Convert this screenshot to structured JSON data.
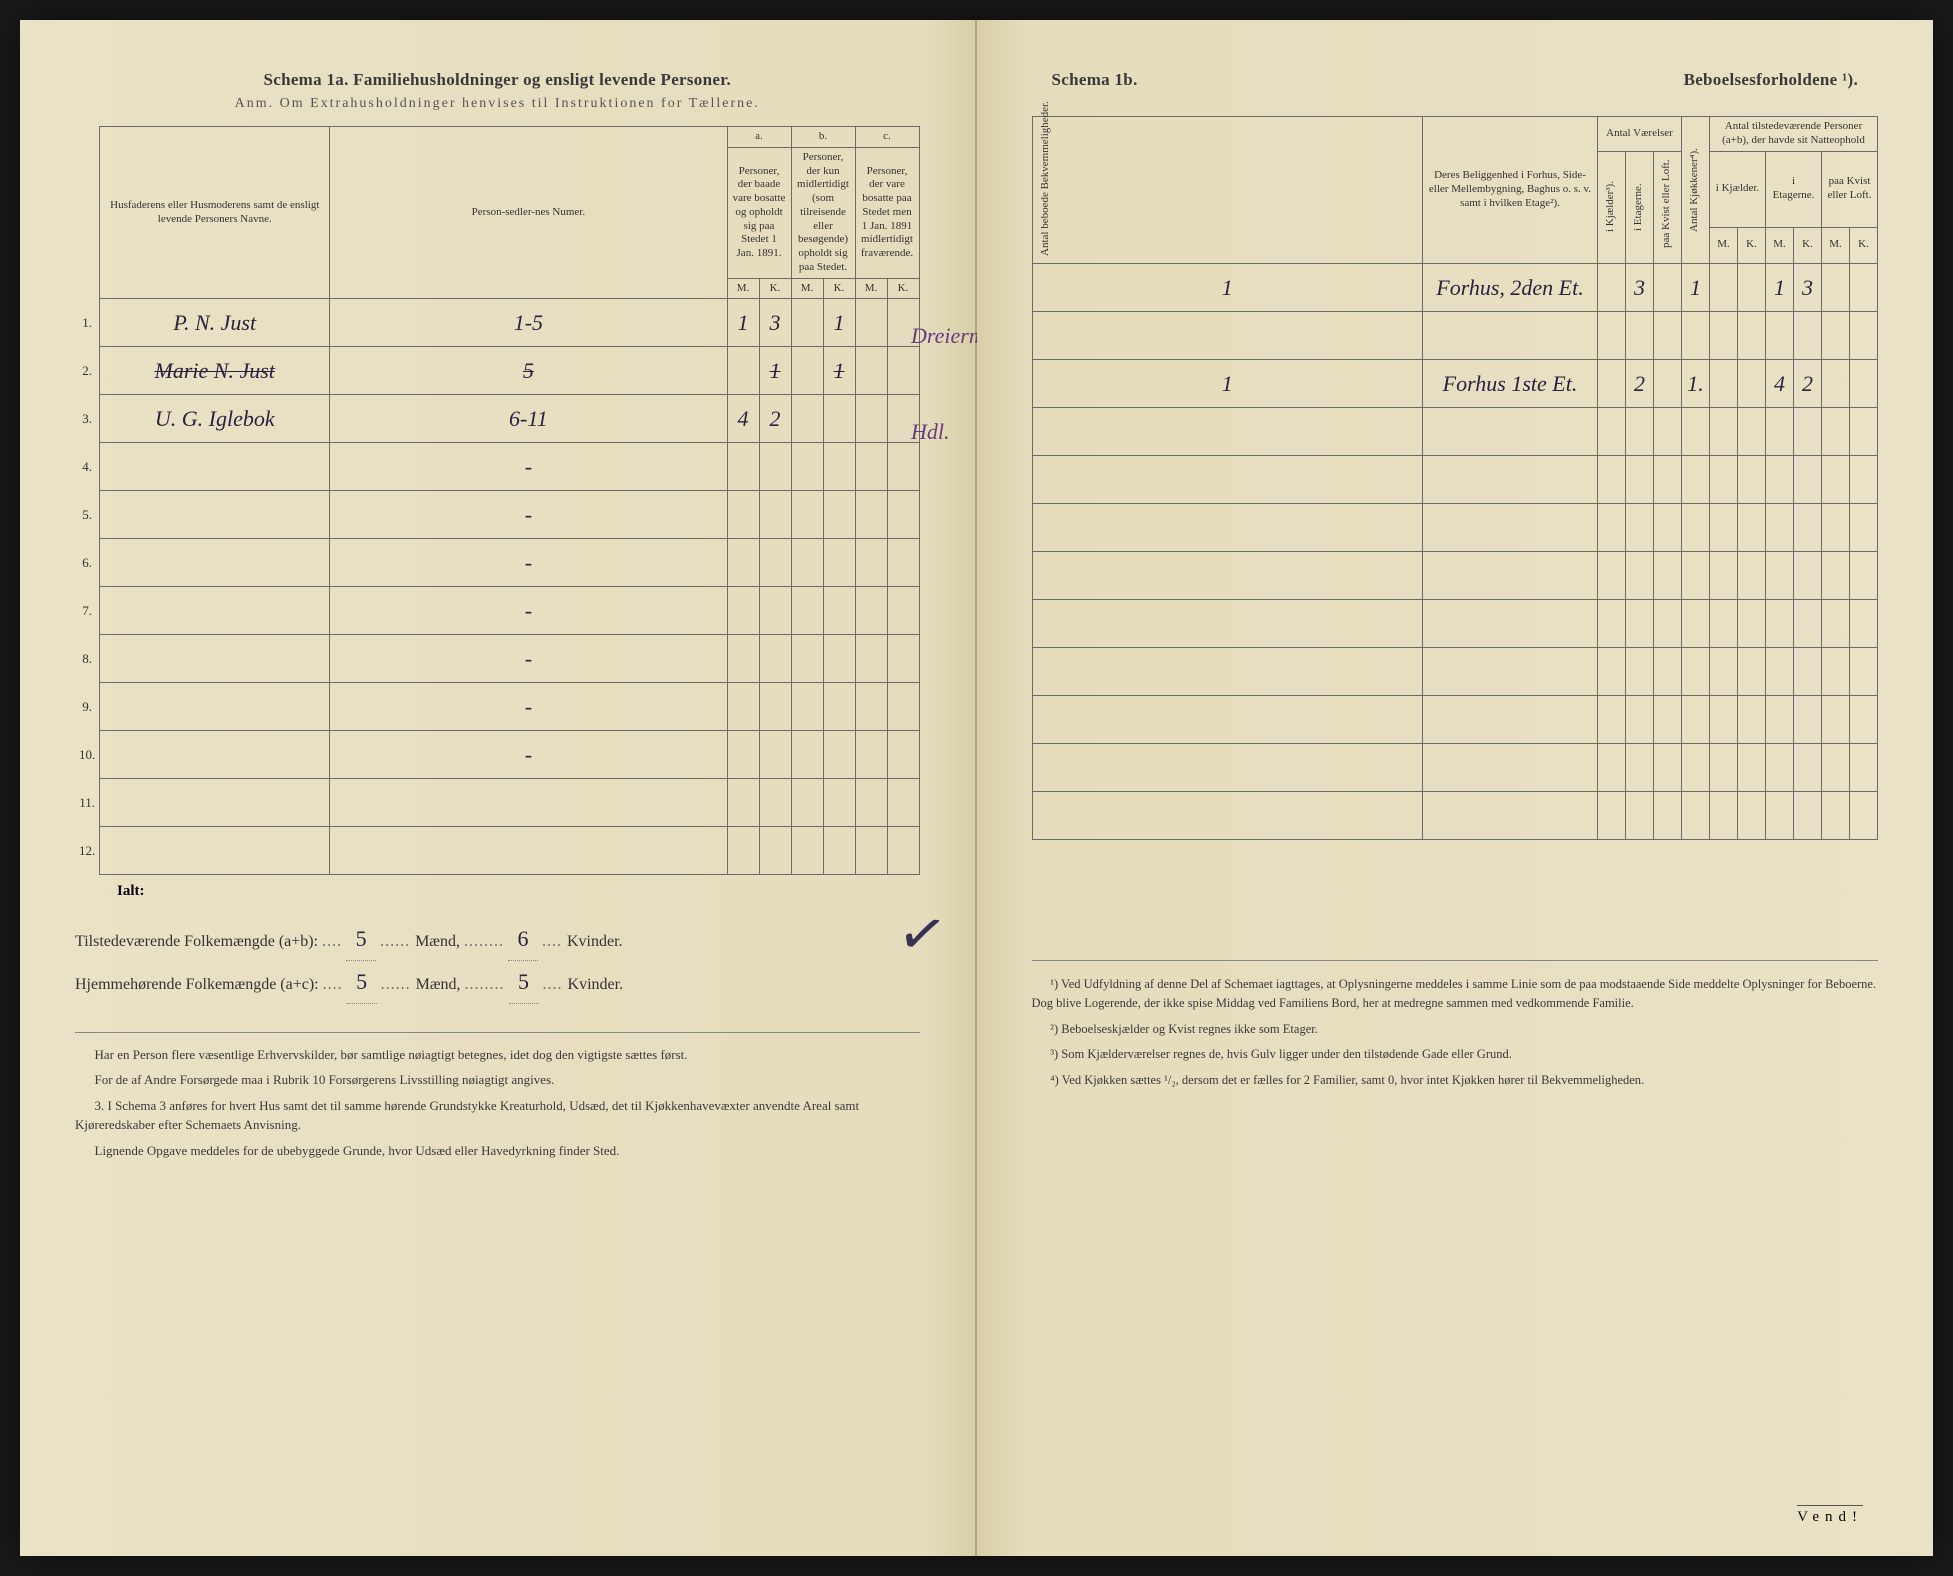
{
  "left": {
    "title": "Schema 1a.  Familiehusholdninger og ensligt levende Personer.",
    "subtitle": "Anm. Om Extrahusholdninger henvises til Instruktionen for Tællerne.",
    "headers": {
      "names": "Husfaderens eller Husmoderens samt de ensligt levende Personers Navne.",
      "person_num": "Person-sedler-nes Numer.",
      "a_label": "a.",
      "a_text": "Personer, der baade vare bosatte og opholdt sig paa Stedet 1 Jan. 1891.",
      "b_label": "b.",
      "b_text": "Personer, der kun midlertidigt (som tilreisende eller besøgende) opholdt sig paa Stedet.",
      "c_label": "c.",
      "c_text": "Personer, der vare bosatte paa Stedet men 1 Jan. 1891 midlertidigt fraværende.",
      "m": "M.",
      "k": "K."
    },
    "rows": [
      {
        "n": "1.",
        "name": "P. N. Just",
        "pn": "1-5",
        "aM": "1",
        "aK": "3",
        "bM": "",
        "bK": "1",
        "cM": "",
        "cK": "",
        "strike": false,
        "extra": "Dreierm."
      },
      {
        "n": "2.",
        "name": "Marie N. Just",
        "pn": "5",
        "aM": "",
        "aK": "1",
        "bM": "",
        "bK": "1",
        "cM": "",
        "cK": "",
        "strike": true,
        "extra": ""
      },
      {
        "n": "3.",
        "name": "U. G. Iglebok",
        "pn": "6-11",
        "aM": "4",
        "aK": "2",
        "bM": "",
        "bK": "",
        "cM": "",
        "cK": "",
        "strike": false,
        "extra": "Hdl."
      },
      {
        "n": "4.",
        "name": "",
        "pn": "-",
        "aM": "",
        "aK": "",
        "bM": "",
        "bK": "",
        "cM": "",
        "cK": "",
        "strike": false,
        "extra": ""
      },
      {
        "n": "5.",
        "name": "",
        "pn": "-",
        "aM": "",
        "aK": "",
        "bM": "",
        "bK": "",
        "cM": "",
        "cK": "",
        "strike": false,
        "extra": ""
      },
      {
        "n": "6.",
        "name": "",
        "pn": "-",
        "aM": "",
        "aK": "",
        "bM": "",
        "bK": "",
        "cM": "",
        "cK": "",
        "strike": false,
        "extra": ""
      },
      {
        "n": "7.",
        "name": "",
        "pn": "-",
        "aM": "",
        "aK": "",
        "bM": "",
        "bK": "",
        "cM": "",
        "cK": "",
        "strike": false,
        "extra": ""
      },
      {
        "n": "8.",
        "name": "",
        "pn": "-",
        "aM": "",
        "aK": "",
        "bM": "",
        "bK": "",
        "cM": "",
        "cK": "",
        "strike": false,
        "extra": ""
      },
      {
        "n": "9.",
        "name": "",
        "pn": "-",
        "aM": "",
        "aK": "",
        "bM": "",
        "bK": "",
        "cM": "",
        "cK": "",
        "strike": false,
        "extra": ""
      },
      {
        "n": "10.",
        "name": "",
        "pn": "-",
        "aM": "",
        "aK": "",
        "bM": "",
        "bK": "",
        "cM": "",
        "cK": "",
        "strike": false,
        "extra": ""
      },
      {
        "n": "11.",
        "name": "",
        "pn": "",
        "aM": "",
        "aK": "",
        "bM": "",
        "bK": "",
        "cM": "",
        "cK": "",
        "strike": false,
        "extra": ""
      },
      {
        "n": "12.",
        "name": "",
        "pn": "",
        "aM": "",
        "aK": "",
        "bM": "",
        "bK": "",
        "cM": "",
        "cK": "",
        "strike": false,
        "extra": ""
      }
    ],
    "ialt": "Ialt:",
    "total1_label": "Tilstedeværende Folkemængde (a+b):",
    "total1_m": "5",
    "total1_mw": "Mænd,",
    "total1_k": "6",
    "total1_kw": "Kvinder.",
    "total2_label": "Hjemmehørende Folkemængde (a+c):",
    "total2_m": "5",
    "total2_mw": "Mænd,",
    "total2_k": "5",
    "total2_kw": "Kvinder.",
    "foot1": "Har en Person flere væsentlige Erhvervskilder, bør samtlige nøiagtigt betegnes, idet dog den vigtigste sættes først.",
    "foot2": "For de af Andre Forsørgede maa i Rubrik 10 Forsørgerens Livsstilling nøiagtigt angives.",
    "foot3": "3. I Schema 3 anføres for hvert Hus samt det til samme hørende Grundstykke Kreaturhold, Udsæd, det til Kjøkkenhavevæxter anvendte Areal samt Kjøreredskaber efter Schemaets Anvisning.",
    "foot4": "Lignende Opgave meddeles for de ubebyggede Grunde, hvor Udsæd eller Havedyrkning finder Sted."
  },
  "right": {
    "title_a": "Schema 1b.",
    "title_b": "Beboelsesforholdene ¹).",
    "headers": {
      "bekv": "Antal beboede Bekvemmeligheder.",
      "loc": "Deres Beliggenhed i Forhus, Side- eller Mellembygning, Baghus o. s. v. samt i hvilken Etage²).",
      "rooms": "Antal Værelser",
      "kj": "i Kjælder³).",
      "et": "i Etagerne.",
      "kv": "paa Kvist eller Loft.",
      "kitchen": "Antal Kjøkkener⁴).",
      "persons": "Antal tilstedeværende Personer (a+b), der havde sit Natteophold",
      "p_kj": "i Kjælder.",
      "p_et": "i Etagerne.",
      "p_kv": "paa Kvist eller Loft.",
      "m": "M.",
      "k": "K."
    },
    "rows": [
      {
        "bekv": "1",
        "loc": "Forhus, 2den Et.",
        "rk": "",
        "re": "3",
        "rkv": "",
        "kit": "1",
        "kjM": "",
        "kjK": "",
        "etM": "1",
        "etK": "3",
        "kvM": "",
        "kvK": ""
      },
      {
        "bekv": "",
        "loc": "",
        "rk": "",
        "re": "",
        "rkv": "",
        "kit": "",
        "kjM": "",
        "kjK": "",
        "etM": "",
        "etK": "",
        "kvM": "",
        "kvK": ""
      },
      {
        "bekv": "1",
        "loc": "Forhus 1ste Et.",
        "rk": "",
        "re": "2",
        "rkv": "",
        "kit": "1.",
        "kjM": "",
        "kjK": "",
        "etM": "4",
        "etK": "2",
        "kvM": "",
        "kvK": ""
      },
      {
        "bekv": "",
        "loc": "",
        "rk": "",
        "re": "",
        "rkv": "",
        "kit": "",
        "kjM": "",
        "kjK": "",
        "etM": "",
        "etK": "",
        "kvM": "",
        "kvK": ""
      },
      {
        "bekv": "",
        "loc": "",
        "rk": "",
        "re": "",
        "rkv": "",
        "kit": "",
        "kjM": "",
        "kjK": "",
        "etM": "",
        "etK": "",
        "kvM": "",
        "kvK": ""
      },
      {
        "bekv": "",
        "loc": "",
        "rk": "",
        "re": "",
        "rkv": "",
        "kit": "",
        "kjM": "",
        "kjK": "",
        "etM": "",
        "etK": "",
        "kvM": "",
        "kvK": ""
      },
      {
        "bekv": "",
        "loc": "",
        "rk": "",
        "re": "",
        "rkv": "",
        "kit": "",
        "kjM": "",
        "kjK": "",
        "etM": "",
        "etK": "",
        "kvM": "",
        "kvK": ""
      },
      {
        "bekv": "",
        "loc": "",
        "rk": "",
        "re": "",
        "rkv": "",
        "kit": "",
        "kjM": "",
        "kjK": "",
        "etM": "",
        "etK": "",
        "kvM": "",
        "kvK": ""
      },
      {
        "bekv": "",
        "loc": "",
        "rk": "",
        "re": "",
        "rkv": "",
        "kit": "",
        "kjM": "",
        "kjK": "",
        "etM": "",
        "etK": "",
        "kvM": "",
        "kvK": ""
      },
      {
        "bekv": "",
        "loc": "",
        "rk": "",
        "re": "",
        "rkv": "",
        "kit": "",
        "kjM": "",
        "kjK": "",
        "etM": "",
        "etK": "",
        "kvM": "",
        "kvK": ""
      },
      {
        "bekv": "",
        "loc": "",
        "rk": "",
        "re": "",
        "rkv": "",
        "kit": "",
        "kjM": "",
        "kjK": "",
        "etM": "",
        "etK": "",
        "kvM": "",
        "kvK": ""
      },
      {
        "bekv": "",
        "loc": "",
        "rk": "",
        "re": "",
        "rkv": "",
        "kit": "",
        "kjM": "",
        "kjK": "",
        "etM": "",
        "etK": "",
        "kvM": "",
        "kvK": ""
      }
    ],
    "fn1": "¹) Ved Udfyldning af denne Del af Schemaet iagttages, at Oplysningerne meddeles i samme Linie som de paa modstaaende Side meddelte Oplysninger for Beboerne. Dog blive Logerende, der ikke spise Middag ved Familiens Bord, her at medregne sammen med vedkommende Familie.",
    "fn2": "²) Beboelseskjælder og Kvist regnes ikke som Etager.",
    "fn3": "³) Som Kjælderværelser regnes de, hvis Gulv ligger under den tilstødende Gade eller Grund.",
    "fn4": "⁴) Ved Kjøkken sættes ¹/₂, dersom det er fælles for 2 Familier, samt 0, hvor intet Kjøkken hører til Bekvemmeligheden.",
    "vend": "Vend!"
  },
  "colors": {
    "paper": "#ebe3c8",
    "ink": "#333333",
    "hand": "#2a2340",
    "purple": "#6a3a7a",
    "rule": "#6b6b6b"
  }
}
